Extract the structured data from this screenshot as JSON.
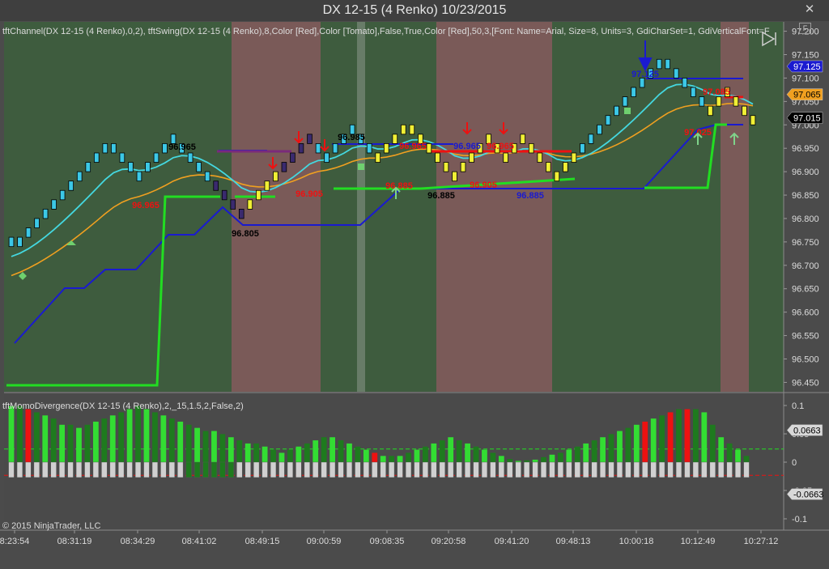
{
  "window": {
    "title": "DX 12-15 (4 Renko)  10/23/2015",
    "f_label": "F",
    "close_glyph": "✕"
  },
  "indicators": {
    "price_label": "tftChannel(DX 12-15 (4 Renko),0,2), tftSwing(DX 12-15 (4 Renko),8,Color [Red],Color [Tomato],False,True,Color [Red],50,3,[Font: Name=Arial, Size=8, Units=3, GdiCharSet=1, GdiVerticalFont=F",
    "momo_label": "tftMomoDivergence(DX 12-15 (4 Renko),2,_15,1.5,2,False,2)"
  },
  "copyright": "© 2015 NinjaTrader, LLC",
  "colors": {
    "bull_zone": "#3e5c3e",
    "bear_zone": "#7a5a58",
    "brick_up": "#3cc8e6",
    "brick_down": "#f0ef35",
    "brick_dark": "#3a2a6e",
    "channel": "#1a1ad0",
    "ema_fast": "#44d8e0",
    "ema_slow": "#f0a020",
    "stop": "#22dd22",
    "swing": "#ee1111",
    "divergence": "#7a2a7a"
  },
  "chart_data": [
    {
      "type": "renko",
      "ylim": [
        96.43,
        97.22
      ],
      "y_ticks": [
        "96.450",
        "96.500",
        "96.550",
        "96.600",
        "96.650",
        "96.700",
        "96.750",
        "96.800",
        "96.850",
        "96.900",
        "96.950",
        "97.000",
        "97.050",
        "97.100",
        "97.150",
        "97.200"
      ],
      "x_ticks": [
        "8:23:54",
        "08:31:19",
        "08:34:29",
        "08:41:02",
        "08:49:15",
        "09:00:59",
        "09:08:35",
        "09:20:58",
        "09:41:20",
        "09:48:13",
        "10:00:18",
        "10:12:49",
        "10:27:12"
      ],
      "price_flags": [
        {
          "label": "97.125",
          "value": 97.125,
          "color": "#1a1ad0",
          "text_color": "#ffffff"
        },
        {
          "label": "97.065",
          "value": 97.065,
          "color": "#f0a020",
          "text_color": "#000000"
        },
        {
          "label": "97.015",
          "value": 97.015,
          "color": "#000000",
          "text_color": "#ffffff"
        }
      ],
      "bricks": [
        96.75,
        96.75,
        96.77,
        96.79,
        96.81,
        96.83,
        96.85,
        96.87,
        96.89,
        96.91,
        96.93,
        96.95,
        96.95,
        96.93,
        96.91,
        96.89,
        96.91,
        96.93,
        96.95,
        96.97,
        96.95,
        96.93,
        96.91,
        96.89,
        96.87,
        96.85,
        96.83,
        96.81,
        96.83,
        96.85,
        96.87,
        96.89,
        96.91,
        96.93,
        96.95,
        96.97,
        96.95,
        96.93,
        96.95,
        96.97,
        96.99,
        96.97,
        96.95,
        96.93,
        96.95,
        96.97,
        96.99,
        96.99,
        96.97,
        96.95,
        96.93,
        96.91,
        96.89,
        96.91,
        96.93,
        96.95,
        96.97,
        96.95,
        96.93,
        96.95,
        96.97,
        96.95,
        96.93,
        96.91,
        96.89,
        96.91,
        96.93,
        96.95,
        96.97,
        96.99,
        97.01,
        97.03,
        97.05,
        97.07,
        97.09,
        97.11,
        97.13,
        97.13,
        97.11,
        97.09,
        97.07,
        97.05,
        97.03,
        97.05,
        97.07,
        97.05,
        97.03,
        97.01
      ],
      "brick_colors": [
        "c",
        "c",
        "c",
        "c",
        "c",
        "c",
        "c",
        "c",
        "c",
        "c",
        "c",
        "c",
        "c",
        "c",
        "c",
        "c",
        "c",
        "c",
        "c",
        "c",
        "c",
        "c",
        "c",
        "c",
        "d",
        "d",
        "d",
        "d",
        "y",
        "y",
        "y",
        "y",
        "d",
        "d",
        "d",
        "d",
        "c",
        "c",
        "c",
        "c",
        "c",
        "c",
        "c",
        "y",
        "y",
        "y",
        "y",
        "y",
        "y",
        "y",
        "y",
        "y",
        "y",
        "y",
        "y",
        "y",
        "y",
        "y",
        "y",
        "y",
        "y",
        "y",
        "y",
        "y",
        "y",
        "y",
        "y",
        "c",
        "c",
        "c",
        "c",
        "c",
        "c",
        "c",
        "c",
        "c",
        "c",
        "c",
        "c",
        "c",
        "c",
        "c",
        "y",
        "y",
        "y",
        "y",
        "y",
        "y"
      ],
      "swing_labels": [
        {
          "text": "96.965",
          "color": "#000000"
        },
        {
          "text": "96.805",
          "color": "#000000"
        },
        {
          "text": "96.985",
          "color": "#000000"
        },
        {
          "text": "96.885",
          "color": "#000000"
        },
        {
          "text": "96.885",
          "color": "#1a1ad0"
        },
        {
          "text": "97.125",
          "color": "#1a1ad0"
        },
        {
          "text": "97.085",
          "color": "#ee1111"
        },
        {
          "text": "96.885",
          "color": "#ee1111"
        },
        {
          "text": "96.965",
          "color": "#ee1111"
        },
        {
          "text": "96.905",
          "color": "#ee1111"
        },
        {
          "text": "96.965",
          "color": "#ee1111"
        },
        {
          "text": "96.965",
          "color": "#ee1111"
        },
        {
          "text": "96.905",
          "color": "#ee1111"
        },
        {
          "text": "96.965",
          "color": "#1a1ad0"
        },
        {
          "text": "97.025",
          "color": "#ee1111"
        }
      ]
    },
    {
      "type": "bar",
      "ylim": [
        -0.12,
        0.12
      ],
      "y_ticks": [
        "0.1",
        "0.05",
        "0",
        "-0.05",
        "-0.1"
      ],
      "threshold_upper": 0.0663,
      "threshold_lower": -0.0663,
      "flags": [
        {
          "label": "0.0663",
          "value": 0.0663
        },
        {
          "label": "-0.0663",
          "value": -0.0663
        }
      ],
      "values": [
        0.09,
        0.09,
        0.085,
        0.08,
        0.075,
        0.07,
        0.06,
        0.06,
        0.055,
        0.06,
        0.065,
        0.07,
        0.075,
        0.08,
        0.085,
        0.09,
        0.085,
        0.08,
        0.075,
        0.07,
        0.065,
        0.06,
        0.055,
        0.05,
        0.05,
        0.045,
        0.04,
        0.035,
        0.03,
        0.03,
        0.025,
        0.02,
        0.015,
        0.02,
        0.025,
        0.03,
        0.035,
        0.04,
        0.04,
        0.035,
        0.03,
        0.025,
        0.02,
        0.015,
        0.01,
        0.01,
        0.01,
        0.015,
        0.02,
        0.025,
        0.03,
        0.035,
        0.04,
        0.035,
        0.03,
        0.025,
        0.02,
        0.015,
        0.01,
        0.005,
        0.002,
        0.003,
        0.004,
        0.008,
        0.012,
        0.015,
        0.02,
        0.025,
        0.03,
        0.035,
        0.04,
        0.045,
        0.05,
        0.055,
        0.06,
        0.065,
        0.07,
        0.075,
        0.08,
        0.085,
        0.085,
        0.085,
        0.08,
        0.06,
        0.04,
        0.03,
        0.02,
        0.01
      ]
    }
  ]
}
